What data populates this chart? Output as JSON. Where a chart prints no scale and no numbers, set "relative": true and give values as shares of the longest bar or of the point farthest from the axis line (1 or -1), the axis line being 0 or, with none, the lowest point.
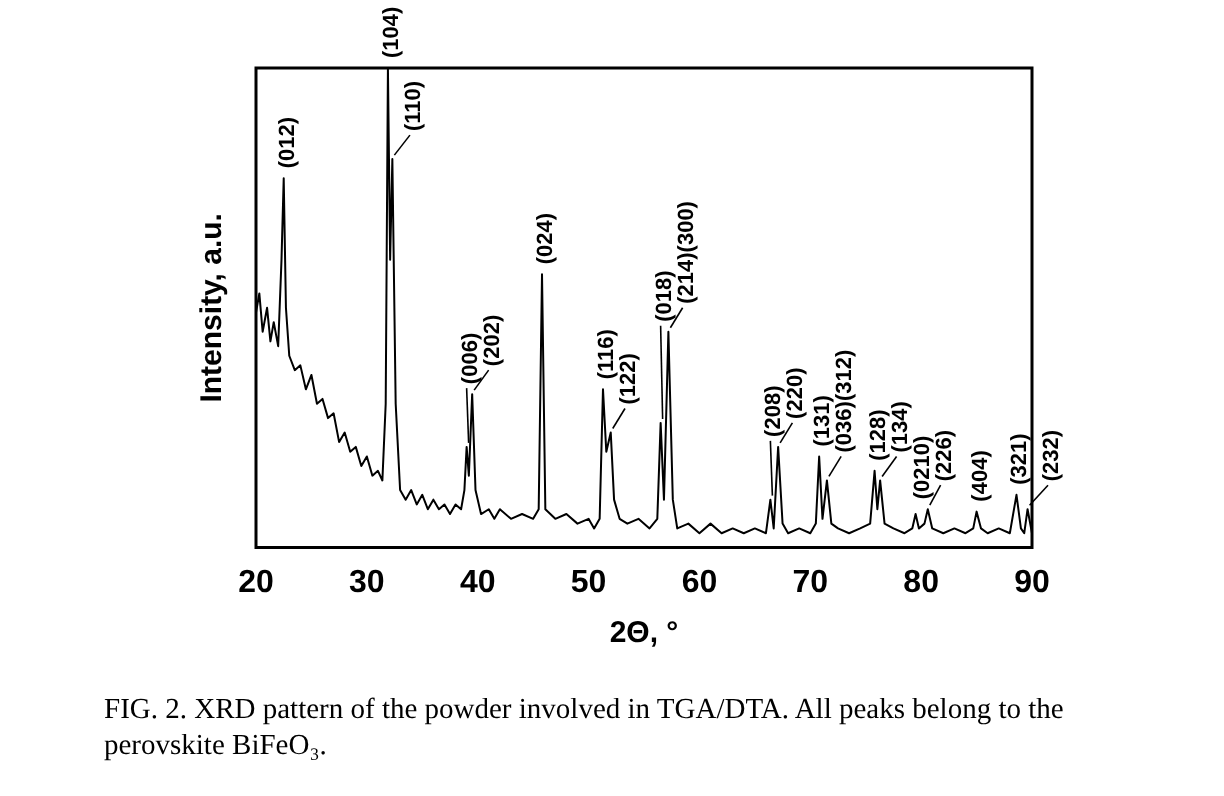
{
  "chart_data": {
    "type": "line",
    "relative": true,
    "xlabel": "2Θ, °",
    "ylabel": "Intensity, a.u.",
    "color": "#000000",
    "marker": "none",
    "xlim": [
      20,
      90
    ],
    "xticks": [
      20,
      30,
      40,
      50,
      60,
      70,
      80,
      90
    ],
    "x": [
      20,
      20.3,
      20.6,
      21,
      21.3,
      21.6,
      22,
      22.3,
      22.5,
      22.7,
      23,
      23.5,
      24,
      24.5,
      25,
      25.5,
      26,
      26.5,
      27,
      27.5,
      28,
      28.5,
      29,
      29.5,
      30,
      30.5,
      31,
      31.4,
      31.7,
      31.9,
      32.1,
      32.3,
      32.6,
      33,
      33.5,
      34,
      34.5,
      35,
      35.5,
      36,
      36.5,
      37,
      37.5,
      38,
      38.5,
      38.8,
      39,
      39.2,
      39.5,
      39.8,
      40.3,
      41,
      41.5,
      42,
      43,
      44,
      45,
      45.5,
      45.8,
      46.1,
      47,
      48,
      49,
      50,
      50.5,
      51,
      51.3,
      51.6,
      52,
      52.3,
      52.8,
      53.5,
      54.5,
      55.5,
      56.2,
      56.5,
      56.8,
      57.2,
      57.6,
      58,
      59,
      60,
      61,
      62,
      63,
      64,
      65,
      66,
      66.4,
      66.7,
      67.1,
      67.5,
      68,
      69,
      70,
      70.5,
      70.8,
      71.1,
      71.5,
      71.9,
      72.5,
      73.5,
      74.5,
      75.4,
      75.8,
      76.05,
      76.3,
      76.7,
      77.5,
      78.5,
      79.2,
      79.5,
      79.8,
      80.3,
      80.6,
      81,
      82,
      83,
      84,
      84.7,
      85,
      85.4,
      86,
      87,
      88,
      88.6,
      89,
      89.3,
      89.6,
      90
    ],
    "values": [
      0.49,
      0.53,
      0.45,
      0.5,
      0.43,
      0.47,
      0.42,
      0.6,
      0.77,
      0.5,
      0.4,
      0.37,
      0.38,
      0.33,
      0.36,
      0.3,
      0.31,
      0.27,
      0.28,
      0.22,
      0.24,
      0.2,
      0.21,
      0.17,
      0.19,
      0.15,
      0.16,
      0.14,
      0.3,
      1.0,
      0.6,
      0.81,
      0.3,
      0.12,
      0.1,
      0.12,
      0.09,
      0.11,
      0.08,
      0.1,
      0.08,
      0.09,
      0.07,
      0.09,
      0.08,
      0.12,
      0.21,
      0.15,
      0.32,
      0.12,
      0.07,
      0.08,
      0.06,
      0.08,
      0.06,
      0.07,
      0.06,
      0.08,
      0.57,
      0.08,
      0.06,
      0.07,
      0.05,
      0.06,
      0.04,
      0.06,
      0.33,
      0.2,
      0.24,
      0.1,
      0.06,
      0.05,
      0.06,
      0.04,
      0.06,
      0.26,
      0.1,
      0.45,
      0.1,
      0.04,
      0.05,
      0.03,
      0.05,
      0.03,
      0.04,
      0.03,
      0.04,
      0.03,
      0.1,
      0.04,
      0.21,
      0.05,
      0.03,
      0.04,
      0.03,
      0.05,
      0.19,
      0.06,
      0.14,
      0.05,
      0.04,
      0.03,
      0.04,
      0.05,
      0.16,
      0.08,
      0.14,
      0.05,
      0.04,
      0.03,
      0.04,
      0.07,
      0.04,
      0.05,
      0.08,
      0.04,
      0.03,
      0.04,
      0.03,
      0.04,
      0.075,
      0.04,
      0.03,
      0.04,
      0.03,
      0.11,
      0.04,
      0.03,
      0.08,
      0.03
    ],
    "annotations": [
      {
        "text": "(012)",
        "x": 22.5,
        "y": 0.77
      },
      {
        "text": "(104)",
        "x": 31.9,
        "y": 1.0
      },
      {
        "text": "(110)",
        "x": 32.3,
        "y": 0.81
      },
      {
        "text": "(006)",
        "x": 39,
        "y": 0.21
      },
      {
        "text": "(202)",
        "x": 39.5,
        "y": 0.32
      },
      {
        "text": "(024)",
        "x": 45.8,
        "y": 0.57
      },
      {
        "text": "(116)",
        "x": 51.3,
        "y": 0.33
      },
      {
        "text": "(122)",
        "x": 52,
        "y": 0.24
      },
      {
        "text": "(018)",
        "x": 56.5,
        "y": 0.26
      },
      {
        "text": "(214)(300)",
        "x": 57.2,
        "y": 0.45
      },
      {
        "text": "(208)",
        "x": 66.4,
        "y": 0.1
      },
      {
        "text": "(220)",
        "x": 67.1,
        "y": 0.21
      },
      {
        "text": "(131)",
        "x": 70.8,
        "y": 0.19
      },
      {
        "text": "(036)(312)",
        "x": 71.5,
        "y": 0.14
      },
      {
        "text": "(128)",
        "x": 75.8,
        "y": 0.16
      },
      {
        "text": "(134)",
        "x": 76.3,
        "y": 0.14
      },
      {
        "text": "(0210)",
        "x": 79.5,
        "y": 0.07
      },
      {
        "text": "(226)",
        "x": 80.6,
        "y": 0.08
      },
      {
        "text": "(404)",
        "x": 85,
        "y": 0.075
      },
      {
        "text": "(321)",
        "x": 88.6,
        "y": 0.11
      },
      {
        "text": "(232)",
        "x": 89.6,
        "y": 0.08
      },
      "FIG. 2. XRD pattern of the powder involved in TGA/DTA. All peaks belong to the perovskite BiFeO₃."
    ]
  }
}
